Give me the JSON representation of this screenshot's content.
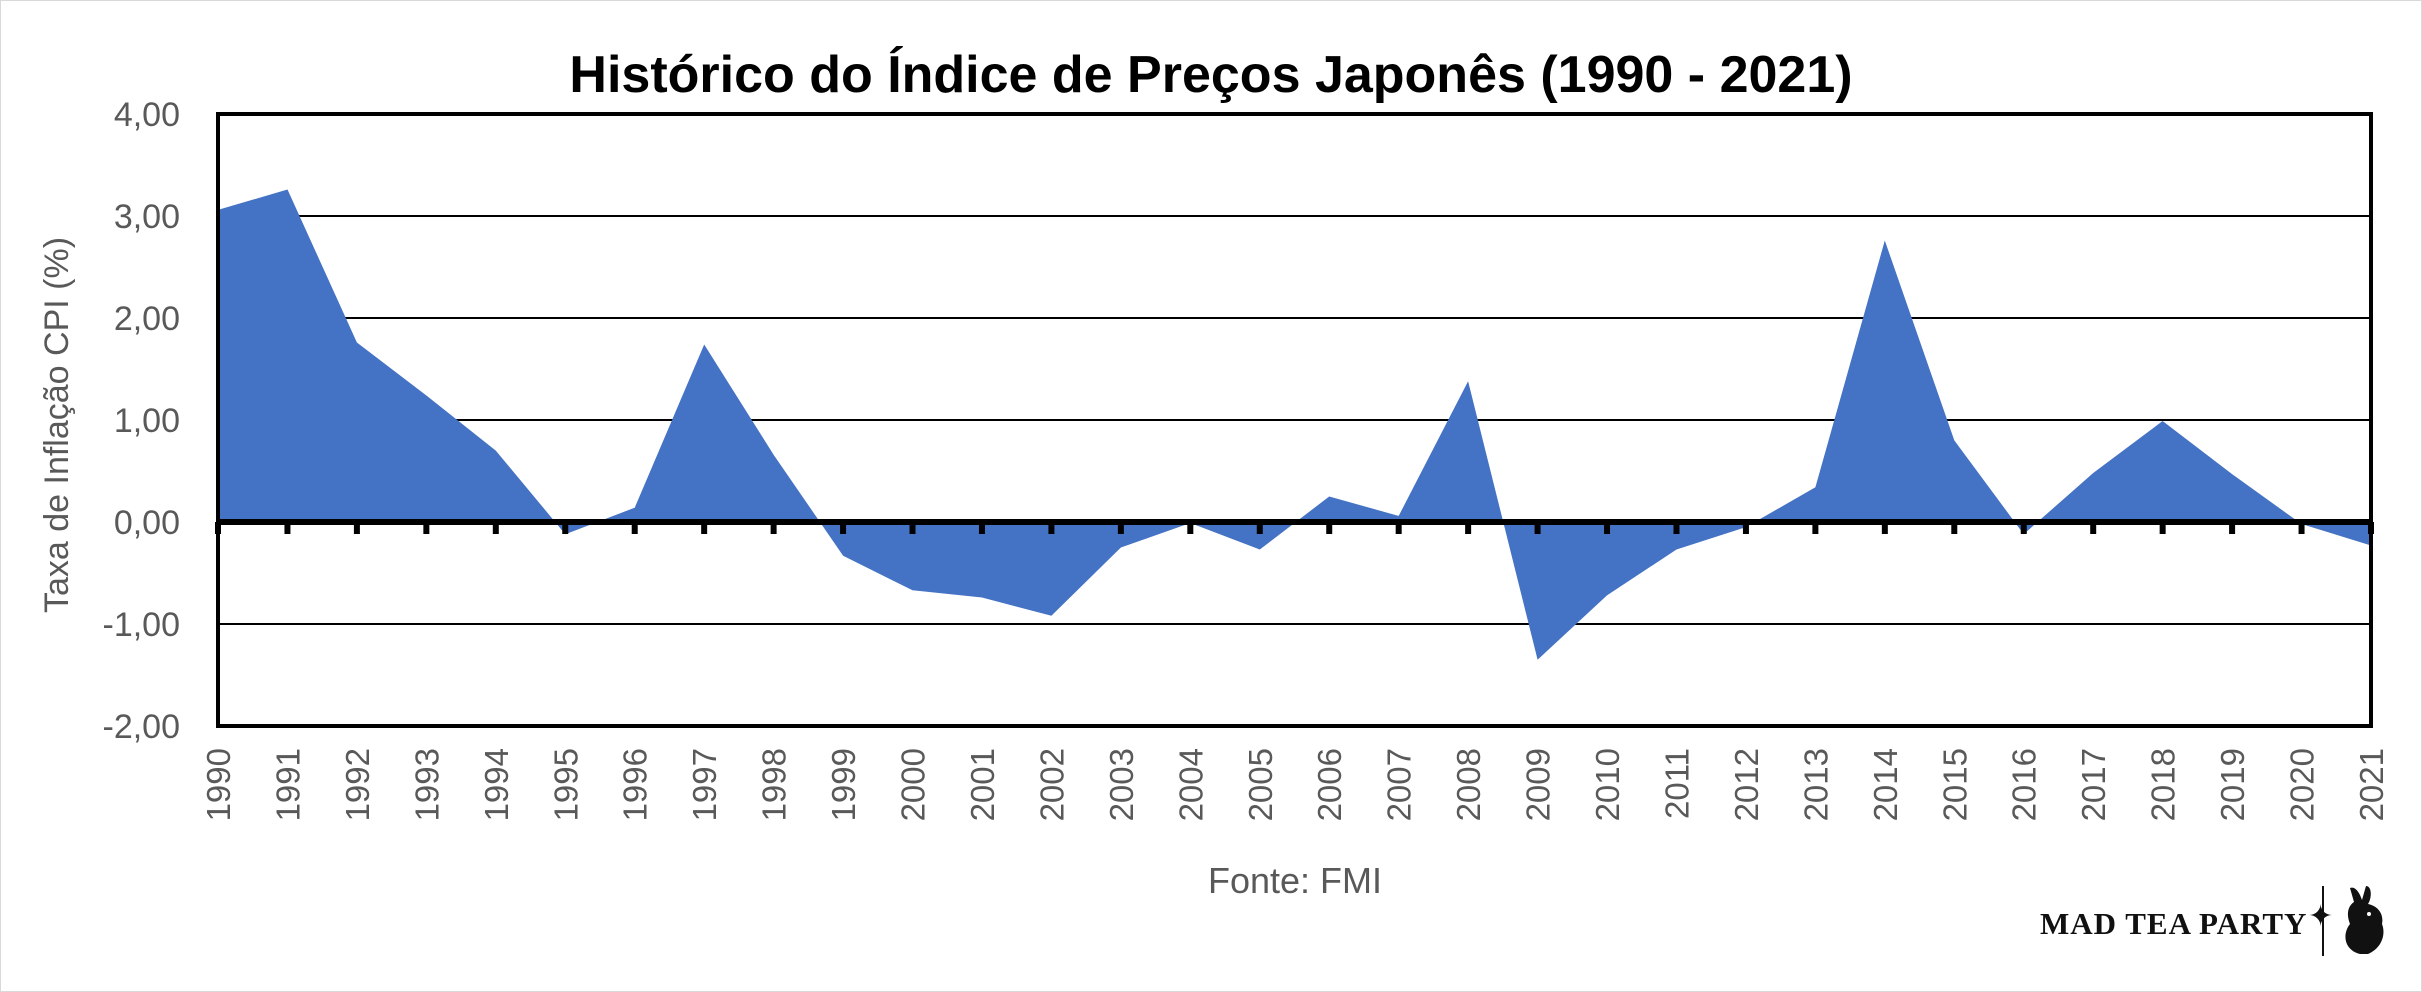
{
  "chart_data": {
    "type": "area",
    "title": "Histórico do Índice de Preços Japonês (1990 - 2021)",
    "xlabel": "",
    "ylabel": "Taxa de Inflação CPI (%)",
    "ylim": [
      -2,
      4
    ],
    "y_ticks": [
      "-2,00",
      "-1,00",
      "0,00",
      "1,00",
      "2,00",
      "3,00",
      "4,00"
    ],
    "x": [
      "1990",
      "1991",
      "1992",
      "1993",
      "1994",
      "1995",
      "1996",
      "1997",
      "1998",
      "1999",
      "2000",
      "2001",
      "2002",
      "2003",
      "2004",
      "2005",
      "2006",
      "2007",
      "2008",
      "2009",
      "2010",
      "2011",
      "2012",
      "2013",
      "2014",
      "2015",
      "2016",
      "2017",
      "2018",
      "2019",
      "2020",
      "2021"
    ],
    "series": [
      {
        "values": [
          3.06,
          3.26,
          1.76,
          1.24,
          0.7,
          -0.12,
          0.14,
          1.74,
          0.66,
          -0.33,
          -0.67,
          -0.74,
          -0.92,
          -0.25,
          -0.01,
          -0.27,
          0.25,
          0.06,
          1.38,
          -1.35,
          -0.72,
          -0.27,
          -0.05,
          0.34,
          2.76,
          0.8,
          -0.12,
          0.48,
          0.99,
          0.47,
          -0.02,
          -0.23
        ],
        "color": "#4472c4"
      }
    ],
    "grid": true,
    "legend": "none",
    "source": "Fonte: FMI"
  },
  "logo": {
    "text": "MAD TEA PARTY"
  },
  "colors": {
    "area": "#4472c4",
    "axis": "#000000",
    "text": "#595959"
  }
}
